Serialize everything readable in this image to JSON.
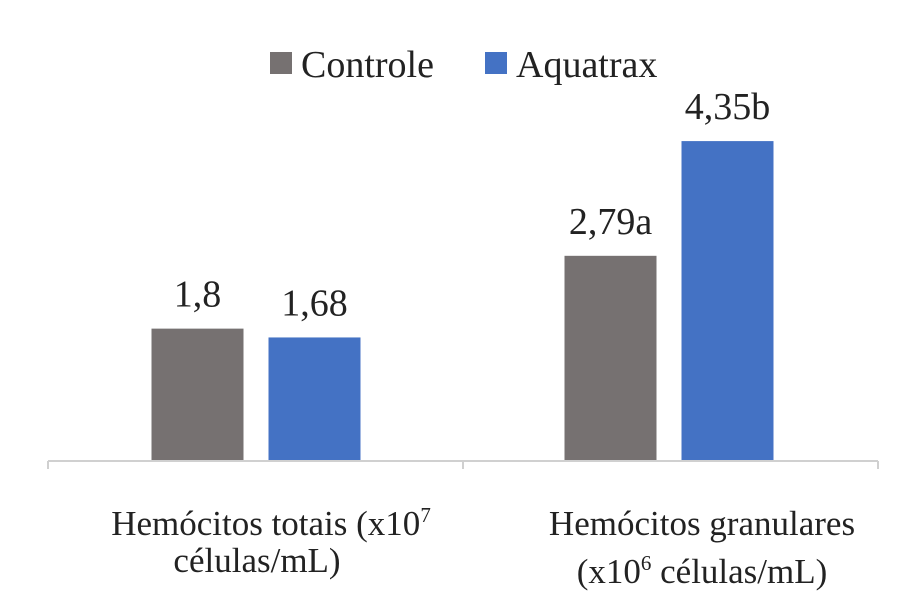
{
  "chart_data": {
    "type": "bar",
    "categories": [
      {
        "line1_text": "Hemócitos totais (x10",
        "line1_sup": "7",
        "line1_after": "",
        "line2_text": "células/mL)",
        "line2_sup": "",
        "line2_after": ""
      },
      {
        "line1_text": "Hemócitos granulares",
        "line1_sup": "",
        "line1_after": "",
        "line2_text": "(x10",
        "line2_sup": "6",
        "line2_after": " células/mL)"
      }
    ],
    "series": [
      {
        "name": "Controle",
        "color": "#767171",
        "values": [
          1.8,
          2.79
        ],
        "labels": [
          "1,8",
          "2,79a"
        ]
      },
      {
        "name": "Aquatrax",
        "color": "#4472c4",
        "values": [
          1.68,
          4.35
        ],
        "labels": [
          "1,68",
          "4,35b"
        ]
      }
    ],
    "ylim": [
      0,
      4.8
    ],
    "grid": false,
    "legend_position": "top"
  }
}
